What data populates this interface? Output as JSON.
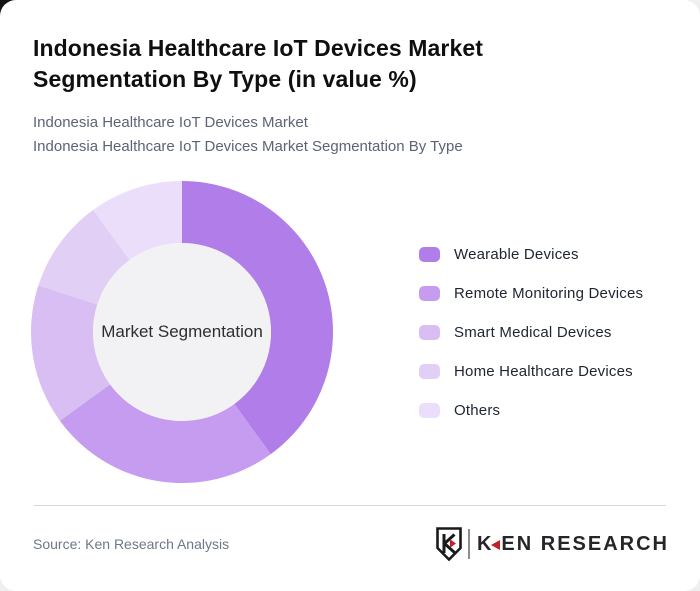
{
  "page": {
    "title": "Indonesia Healthcare IoT Devices Market Segmentation By Type (in value %)",
    "subtitle_line1": "Indonesia Healthcare IoT Devices Market",
    "subtitle_line2": "Indonesia Healthcare IoT Devices Market Segmentation By Type",
    "source": "Source: Ken Research Analysis"
  },
  "logo": {
    "shield_letter": "K",
    "wordmark_first_letter": "K",
    "wordmark_rest": "EN RESEARCH",
    "accent_red": "#c42127",
    "dark": "#1a1a1a"
  },
  "chart_data": {
    "type": "pie",
    "donut": true,
    "title": "Indonesia Healthcare IoT Devices Market Segmentation By Type (in value %)",
    "center_label": "Market Segmentation",
    "categories": [
      "Wearable Devices",
      "Remote Monitoring Devices",
      "Smart Medical Devices",
      "Home Healthcare Devices",
      "Others"
    ],
    "values": [
      40,
      25,
      15,
      10,
      10
    ],
    "unit": "%",
    "colors": [
      "#b17de8",
      "#c59cef",
      "#d8bef3",
      "#e1cff6",
      "#ebdefb"
    ],
    "inner_circle_color": "#f2f1f3",
    "start_angle_deg": 0,
    "direction": "clockwise",
    "legend_position": "right",
    "data_labels_shown": false
  }
}
